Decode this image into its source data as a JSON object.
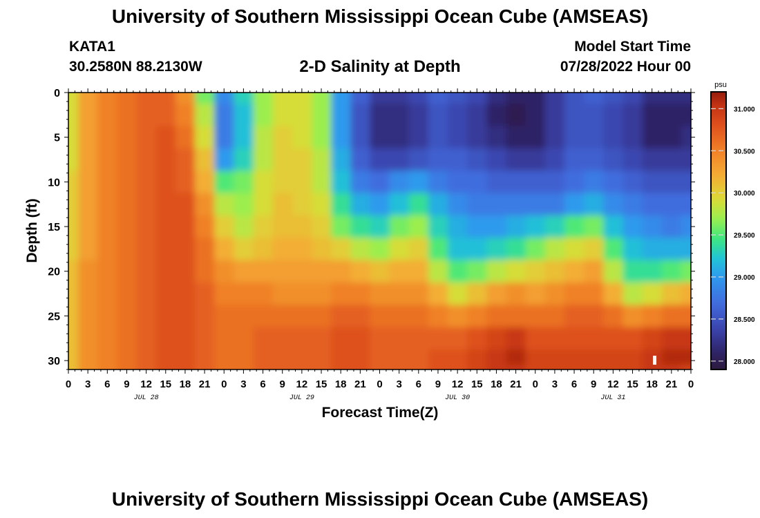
{
  "header": {
    "title": "University of Southern Mississippi Ocean Cube (AMSEAS)",
    "station": "KATA1",
    "coords": "30.2580N  88.2130W",
    "subtitle": "2-D Salinity at Depth",
    "start_label": "Model Start Time",
    "start_value": "07/28/2022 Hour 00"
  },
  "footer_title": "University of Southern Mississippi Ocean Cube (AMSEAS)",
  "chart_data": {
    "type": "heatmap",
    "title": "2-D Salinity at Depth",
    "xlabel": "Forecast Time(Z)",
    "ylabel": "Depth (ft)",
    "xlim": [
      0,
      96
    ],
    "ylim": [
      0,
      31
    ],
    "x_tick_labels": [
      "0",
      "3",
      "6",
      "9",
      "12",
      "15",
      "18",
      "21",
      "0",
      "3",
      "6",
      "9",
      "12",
      "15",
      "18",
      "21",
      "0",
      "3",
      "6",
      "9",
      "12",
      "15",
      "18",
      "21",
      "0",
      "3",
      "6",
      "9",
      "12",
      "15",
      "18",
      "21",
      "0"
    ],
    "day_labels": [
      {
        "label": "JUL 28",
        "hour": 12
      },
      {
        "label": "JUL 29",
        "hour": 36
      },
      {
        "label": "JUL 30",
        "hour": 60
      },
      {
        "label": "JUL 31",
        "hour": 84
      }
    ],
    "y_ticks": [
      0,
      5,
      10,
      15,
      20,
      25,
      30
    ],
    "colorbar": {
      "unit": "psu",
      "range": [
        27.9,
        31.2
      ],
      "ticks": [
        "28.000",
        "28.500",
        "29.000",
        "29.500",
        "30.000",
        "30.500",
        "31.000"
      ],
      "tick_values": [
        28.0,
        28.5,
        29.0,
        29.5,
        30.0,
        30.5,
        31.0
      ]
    },
    "depth_rows": [
      0,
      2.5,
      5,
      7.5,
      10,
      12.5,
      15,
      17.5,
      20,
      22.5,
      25,
      27.5,
      30,
      31
    ],
    "time_cols": [
      0,
      3,
      6,
      9,
      12,
      15,
      18,
      21,
      24,
      27,
      30,
      33,
      36,
      39,
      42,
      45,
      48,
      51,
      54,
      57,
      60,
      63,
      66,
      69,
      72,
      75,
      78,
      81,
      84,
      87,
      90,
      93,
      96
    ],
    "salinity": [
      [
        29.9,
        30.3,
        30.5,
        30.6,
        30.7,
        30.7,
        30.4,
        29.6,
        28.9,
        29.3,
        29.7,
        29.9,
        29.9,
        29.7,
        29.0,
        28.6,
        28.3,
        28.3,
        28.4,
        28.6,
        28.5,
        28.4,
        28.2,
        28.1,
        28.1,
        28.3,
        28.5,
        28.6,
        28.5,
        28.4,
        28.2,
        28.2,
        28.2
      ],
      [
        29.9,
        30.3,
        30.5,
        30.6,
        30.7,
        30.7,
        30.5,
        29.8,
        28.8,
        29.2,
        29.7,
        29.9,
        29.9,
        29.7,
        29.0,
        28.5,
        28.2,
        28.2,
        28.3,
        28.5,
        28.4,
        28.3,
        28.1,
        28.0,
        28.1,
        28.3,
        28.5,
        28.5,
        28.4,
        28.3,
        28.1,
        28.1,
        28.1
      ],
      [
        29.9,
        30.3,
        30.5,
        30.6,
        30.7,
        30.8,
        30.6,
        29.9,
        28.8,
        29.2,
        29.8,
        30.0,
        29.9,
        29.7,
        29.0,
        28.5,
        28.2,
        28.2,
        28.3,
        28.5,
        28.4,
        28.3,
        28.2,
        28.1,
        28.1,
        28.3,
        28.5,
        28.5,
        28.4,
        28.3,
        28.1,
        28.1,
        28.2
      ],
      [
        29.9,
        30.3,
        30.5,
        30.6,
        30.7,
        30.8,
        30.7,
        30.1,
        29.0,
        29.3,
        29.8,
        30.0,
        30.0,
        29.8,
        29.1,
        28.6,
        28.4,
        28.4,
        28.5,
        28.6,
        28.6,
        28.5,
        28.4,
        28.3,
        28.3,
        28.4,
        28.6,
        28.6,
        28.5,
        28.4,
        28.3,
        28.3,
        28.3
      ],
      [
        30.0,
        30.3,
        30.5,
        30.6,
        30.7,
        30.8,
        30.7,
        30.2,
        29.5,
        29.6,
        29.9,
        30.0,
        30.0,
        29.8,
        29.2,
        28.8,
        28.7,
        28.9,
        29.0,
        28.8,
        28.7,
        28.7,
        28.6,
        28.6,
        28.6,
        28.6,
        28.7,
        28.8,
        28.7,
        28.6,
        28.5,
        28.5,
        28.5
      ],
      [
        30.0,
        30.3,
        30.5,
        30.6,
        30.7,
        30.8,
        30.8,
        30.4,
        29.8,
        29.7,
        29.9,
        30.1,
        30.0,
        29.9,
        29.4,
        29.1,
        29.0,
        29.2,
        29.4,
        29.1,
        28.9,
        28.8,
        28.8,
        28.8,
        28.8,
        28.8,
        29.0,
        29.1,
        28.9,
        28.8,
        28.7,
        28.7,
        28.7
      ],
      [
        30.0,
        30.3,
        30.5,
        30.6,
        30.7,
        30.8,
        30.8,
        30.5,
        30.0,
        29.8,
        30.0,
        30.1,
        30.1,
        30.0,
        29.6,
        29.4,
        29.3,
        29.6,
        29.7,
        29.3,
        29.1,
        29.0,
        29.0,
        29.1,
        29.2,
        29.3,
        29.5,
        29.6,
        29.2,
        29.0,
        28.9,
        28.8,
        28.9
      ],
      [
        30.0,
        30.3,
        30.5,
        30.6,
        30.7,
        30.8,
        30.8,
        30.6,
        30.2,
        30.0,
        30.1,
        30.2,
        30.2,
        30.1,
        30.0,
        29.8,
        29.7,
        29.9,
        30.0,
        29.5,
        29.2,
        29.2,
        29.3,
        29.4,
        29.6,
        29.8,
        29.9,
        30.0,
        29.5,
        29.2,
        29.1,
        29.1,
        29.1
      ],
      [
        30.1,
        30.4,
        30.5,
        30.6,
        30.7,
        30.8,
        30.8,
        30.6,
        30.4,
        30.3,
        30.3,
        30.3,
        30.3,
        30.3,
        30.3,
        30.2,
        30.1,
        30.2,
        30.2,
        29.8,
        29.5,
        29.6,
        29.8,
        29.9,
        30.0,
        30.1,
        30.2,
        30.3,
        29.8,
        29.4,
        29.4,
        29.5,
        29.6
      ],
      [
        30.1,
        30.4,
        30.5,
        30.6,
        30.7,
        30.8,
        30.8,
        30.7,
        30.5,
        30.5,
        30.5,
        30.4,
        30.4,
        30.4,
        30.5,
        30.5,
        30.4,
        30.4,
        30.4,
        30.2,
        29.9,
        30.1,
        30.3,
        30.4,
        30.3,
        30.4,
        30.5,
        30.5,
        30.2,
        29.8,
        29.9,
        30.1,
        30.2
      ],
      [
        30.1,
        30.4,
        30.5,
        30.6,
        30.7,
        30.8,
        30.8,
        30.7,
        30.6,
        30.6,
        30.6,
        30.6,
        30.6,
        30.6,
        30.7,
        30.7,
        30.6,
        30.6,
        30.6,
        30.5,
        30.4,
        30.5,
        30.6,
        30.6,
        30.6,
        30.6,
        30.7,
        30.7,
        30.6,
        30.4,
        30.5,
        30.6,
        30.6
      ],
      [
        30.1,
        30.4,
        30.5,
        30.6,
        30.7,
        30.8,
        30.8,
        30.7,
        30.6,
        30.6,
        30.7,
        30.7,
        30.7,
        30.7,
        30.8,
        30.8,
        30.7,
        30.7,
        30.7,
        30.7,
        30.7,
        30.8,
        30.9,
        31.0,
        30.8,
        30.8,
        30.8,
        30.8,
        30.8,
        30.8,
        30.9,
        31.0,
        31.0
      ],
      [
        30.1,
        30.4,
        30.5,
        30.6,
        30.7,
        30.8,
        30.8,
        30.7,
        30.6,
        30.6,
        30.7,
        30.7,
        30.7,
        30.7,
        30.8,
        30.8,
        30.7,
        30.7,
        30.7,
        30.8,
        30.8,
        30.9,
        31.0,
        31.1,
        30.9,
        30.9,
        30.9,
        30.9,
        30.9,
        30.9,
        31.0,
        31.1,
        31.1
      ],
      [
        30.1,
        30.4,
        30.5,
        30.6,
        30.7,
        30.8,
        30.8,
        30.7,
        30.6,
        30.6,
        30.7,
        30.7,
        30.7,
        30.7,
        30.8,
        30.8,
        30.7,
        30.7,
        30.7,
        30.8,
        30.8,
        30.9,
        31.0,
        31.0,
        30.9,
        30.9,
        30.9,
        30.9,
        30.9,
        30.9,
        31.0,
        31.0,
        30.9
      ]
    ]
  }
}
